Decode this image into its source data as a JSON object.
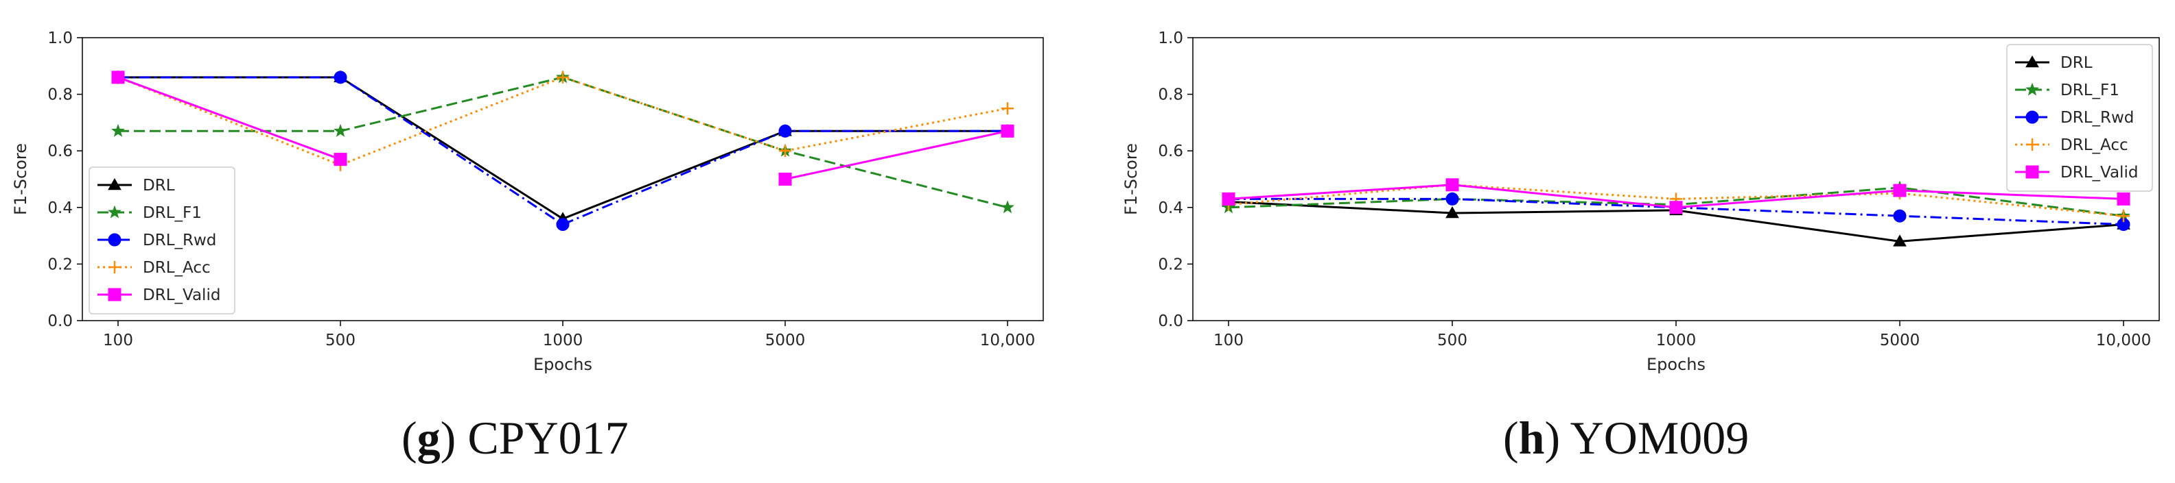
{
  "chart_data": [
    {
      "type": "line",
      "caption": {
        "letter": "g",
        "title": "CPY017"
      },
      "categories": [
        "100",
        "500",
        "1000",
        "5000",
        "10,000"
      ],
      "xlabel": "Epochs",
      "ylabel": "F1-Score",
      "ylim": [
        0.0,
        1.0
      ],
      "yticks": [
        "0.0",
        "0.2",
        "0.4",
        "0.6",
        "0.8",
        "1.0"
      ],
      "legend_position": "lower-left",
      "series": [
        {
          "name": "DRL",
          "values": [
            0.86,
            0.86,
            0.36,
            0.67,
            0.67
          ]
        },
        {
          "name": "DRL_F1",
          "values": [
            0.67,
            0.67,
            0.86,
            0.6,
            0.4
          ]
        },
        {
          "name": "DRL_Rwd",
          "values": [
            0.86,
            0.86,
            0.34,
            0.67,
            0.67
          ]
        },
        {
          "name": "DRL_Acc",
          "values": [
            0.86,
            0.55,
            0.86,
            0.6,
            0.75
          ]
        },
        {
          "name": "DRL_Valid",
          "values": [
            0.86,
            0.57,
            null,
            0.5,
            0.67
          ]
        }
      ]
    },
    {
      "type": "line",
      "caption": {
        "letter": "h",
        "title": "YOM009"
      },
      "categories": [
        "100",
        "500",
        "1000",
        "5000",
        "10,000"
      ],
      "xlabel": "Epochs",
      "ylabel": "F1-Score",
      "ylim": [
        0.0,
        1.0
      ],
      "yticks": [
        "0.0",
        "0.2",
        "0.4",
        "0.6",
        "0.8",
        "1.0"
      ],
      "legend_position": "upper-right",
      "series": [
        {
          "name": "DRL",
          "values": [
            0.42,
            0.38,
            0.39,
            0.28,
            0.34
          ]
        },
        {
          "name": "DRL_F1",
          "values": [
            0.4,
            0.43,
            0.41,
            0.47,
            0.37
          ]
        },
        {
          "name": "DRL_Rwd",
          "values": [
            0.43,
            0.43,
            0.4,
            0.37,
            0.34
          ]
        },
        {
          "name": "DRL_Acc",
          "values": [
            0.41,
            0.48,
            0.43,
            0.45,
            0.37
          ]
        },
        {
          "name": "DRL_Valid",
          "values": [
            0.43,
            0.48,
            0.4,
            0.46,
            0.43
          ]
        }
      ]
    }
  ],
  "series_styles": [
    {
      "color": "#000000",
      "marker": "triangle",
      "dash": "solid"
    },
    {
      "color": "#228B22",
      "marker": "star",
      "dash": "dashed"
    },
    {
      "color": "#0000FF",
      "marker": "circle",
      "dash": "dashdot"
    },
    {
      "color": "#FF8C00",
      "marker": "plus",
      "dash": "dotted"
    },
    {
      "color": "#FF00FF",
      "marker": "square",
      "dash": "solid"
    }
  ]
}
